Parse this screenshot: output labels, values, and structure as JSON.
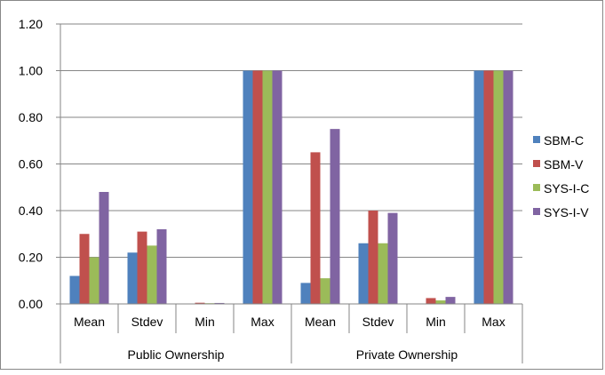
{
  "chart_data": {
    "type": "bar",
    "groups": [
      {
        "label": "Public Ownership",
        "categories": [
          "Mean",
          "Stdev",
          "Min",
          "Max"
        ]
      },
      {
        "label": "Private Ownership",
        "categories": [
          "Mean",
          "Stdev",
          "Min",
          "Max"
        ]
      }
    ],
    "series": [
      {
        "name": "SBM-C",
        "color": "#4f81bd",
        "values": [
          0.12,
          0.22,
          0.0,
          1.0,
          0.09,
          0.26,
          0.0,
          1.0
        ]
      },
      {
        "name": "SBM-V",
        "color": "#c0504d",
        "values": [
          0.3,
          0.31,
          0.005,
          1.0,
          0.65,
          0.4,
          0.025,
          1.0
        ]
      },
      {
        "name": "SYS-I-C",
        "color": "#9bbb59",
        "values": [
          0.2,
          0.25,
          0.003,
          1.0,
          0.11,
          0.26,
          0.015,
          1.0
        ]
      },
      {
        "name": "SYS-I-V",
        "color": "#8064a2",
        "values": [
          0.48,
          0.32,
          0.004,
          1.0,
          0.75,
          0.39,
          0.03,
          1.0
        ]
      }
    ],
    "yticks": [
      "0.00",
      "0.20",
      "0.40",
      "0.60",
      "0.80",
      "1.00",
      "1.20"
    ],
    "ylim": [
      0,
      1.2
    ],
    "grid": true,
    "legend_position": "right"
  }
}
